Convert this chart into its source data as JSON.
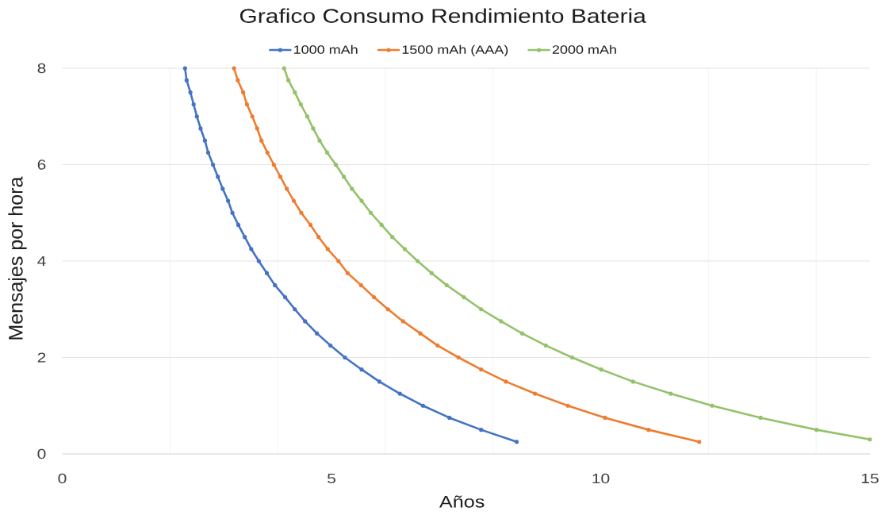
{
  "chart_data": {
    "type": "line",
    "title": "Grafico Consumo Rendimiento Bateria",
    "xlabel": "Años",
    "ylabel": "Mensajes por hora",
    "xlim": [
      0,
      15
    ],
    "ylim": [
      0,
      8
    ],
    "xticks": [
      0,
      {
        "value": 2,
        "label": null
      },
      {
        "value": 4,
        "label": null
      },
      5,
      {
        "value": 6,
        "label": null
      },
      {
        "value": 8,
        "label": null
      },
      10,
      {
        "value": 12,
        "label": null
      },
      {
        "value": 14,
        "label": null
      },
      15
    ],
    "yticks": [
      0,
      2,
      4,
      6,
      8
    ],
    "grid": true,
    "legend": "top",
    "marker": "circle",
    "line_style": "solid",
    "series": [
      {
        "name": "1000 mAh",
        "color": "#4472c4",
        "x": [
          2.28,
          2.31,
          2.38,
          2.44,
          2.5,
          2.57,
          2.65,
          2.71,
          2.8,
          2.89,
          2.98,
          3.08,
          3.16,
          3.27,
          3.39,
          3.51,
          3.65,
          3.8,
          3.95,
          4.14,
          4.32,
          4.51,
          4.73,
          4.98,
          5.25,
          5.56,
          5.89,
          6.27,
          6.7,
          7.19,
          7.78,
          8.44
        ],
        "values": [
          8,
          7.75,
          7.5,
          7.25,
          7,
          6.75,
          6.5,
          6.25,
          6,
          5.75,
          5.5,
          5.25,
          5,
          4.75,
          4.5,
          4.25,
          4,
          3.75,
          3.5,
          3.25,
          3,
          2.75,
          2.5,
          2.25,
          2,
          1.75,
          1.5,
          1.25,
          1,
          0.75,
          0.5,
          0.25
        ]
      },
      {
        "name": "1500 mAh (AAA)",
        "color": "#ed7d31",
        "x": [
          3.19,
          3.26,
          3.36,
          3.43,
          3.53,
          3.62,
          3.7,
          3.81,
          3.93,
          4.05,
          4.17,
          4.3,
          4.44,
          4.61,
          4.76,
          4.93,
          5.13,
          5.3,
          5.55,
          5.79,
          6.05,
          6.33,
          6.65,
          6.97,
          7.36,
          7.78,
          8.24,
          8.78,
          9.39,
          10.08,
          10.89,
          11.83
        ],
        "values": [
          8,
          7.75,
          7.5,
          7.25,
          7,
          6.75,
          6.5,
          6.25,
          6,
          5.75,
          5.5,
          5.25,
          5,
          4.75,
          4.5,
          4.25,
          4,
          3.75,
          3.5,
          3.25,
          3,
          2.75,
          2.5,
          2.25,
          2,
          1.75,
          1.5,
          1.25,
          1,
          0.75,
          0.5,
          0.25
        ]
      },
      {
        "name": "2000 mAh",
        "color": "#94c26b",
        "x": [
          4.12,
          4.2,
          4.32,
          4.43,
          4.55,
          4.66,
          4.78,
          4.92,
          5.08,
          5.23,
          5.38,
          5.56,
          5.73,
          5.93,
          6.13,
          6.36,
          6.6,
          6.86,
          7.14,
          7.46,
          7.78,
          8.15,
          8.54,
          8.98,
          9.47,
          10.01,
          10.6,
          11.3,
          12.07,
          12.97,
          14.01,
          15
        ],
        "values": [
          8,
          7.75,
          7.5,
          7.25,
          7,
          6.75,
          6.5,
          6.25,
          6,
          5.75,
          5.5,
          5.25,
          5,
          4.75,
          4.5,
          4.25,
          4,
          3.75,
          3.5,
          3.25,
          3,
          2.75,
          2.5,
          2.25,
          2,
          1.75,
          1.5,
          1.25,
          1,
          0.75,
          0.5,
          0.3
        ]
      }
    ]
  }
}
